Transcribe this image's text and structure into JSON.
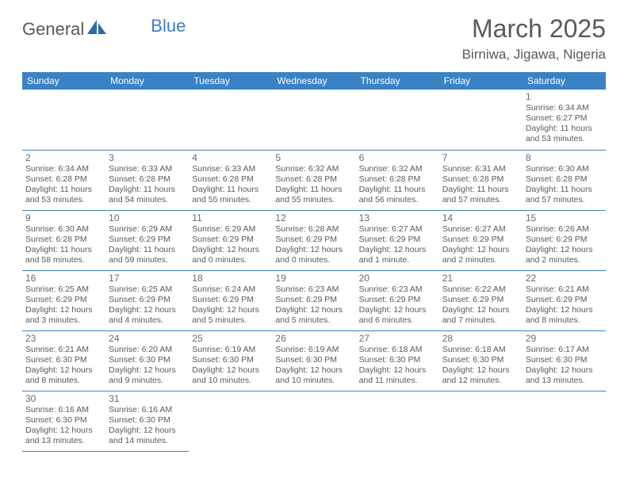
{
  "logo": {
    "part1": "General",
    "part2": "Blue"
  },
  "title": "March 2025",
  "location": "Birniwa, Jigawa, Nigeria",
  "colors": {
    "header_bg": "#3a82c4",
    "header_fg": "#ffffff",
    "rule": "#3a82c4",
    "text": "#5a5a5a"
  },
  "dayNames": [
    "Sunday",
    "Monday",
    "Tuesday",
    "Wednesday",
    "Thursday",
    "Friday",
    "Saturday"
  ],
  "weeks": [
    [
      null,
      null,
      null,
      null,
      null,
      null,
      {
        "n": "1",
        "rise": "6:34 AM",
        "set": "6:27 PM",
        "day": "11 hours and 53 minutes."
      }
    ],
    [
      {
        "n": "2",
        "rise": "6:34 AM",
        "set": "6:28 PM",
        "day": "11 hours and 53 minutes."
      },
      {
        "n": "3",
        "rise": "6:33 AM",
        "set": "6:28 PM",
        "day": "11 hours and 54 minutes."
      },
      {
        "n": "4",
        "rise": "6:33 AM",
        "set": "6:28 PM",
        "day": "11 hours and 55 minutes."
      },
      {
        "n": "5",
        "rise": "6:32 AM",
        "set": "6:28 PM",
        "day": "11 hours and 55 minutes."
      },
      {
        "n": "6",
        "rise": "6:32 AM",
        "set": "6:28 PM",
        "day": "11 hours and 56 minutes."
      },
      {
        "n": "7",
        "rise": "6:31 AM",
        "set": "6:28 PM",
        "day": "11 hours and 57 minutes."
      },
      {
        "n": "8",
        "rise": "6:30 AM",
        "set": "6:28 PM",
        "day": "11 hours and 57 minutes."
      }
    ],
    [
      {
        "n": "9",
        "rise": "6:30 AM",
        "set": "6:28 PM",
        "day": "11 hours and 58 minutes."
      },
      {
        "n": "10",
        "rise": "6:29 AM",
        "set": "6:29 PM",
        "day": "11 hours and 59 minutes."
      },
      {
        "n": "11",
        "rise": "6:29 AM",
        "set": "6:29 PM",
        "day": "12 hours and 0 minutes."
      },
      {
        "n": "12",
        "rise": "6:28 AM",
        "set": "6:29 PM",
        "day": "12 hours and 0 minutes."
      },
      {
        "n": "13",
        "rise": "6:27 AM",
        "set": "6:29 PM",
        "day": "12 hours and 1 minute."
      },
      {
        "n": "14",
        "rise": "6:27 AM",
        "set": "6:29 PM",
        "day": "12 hours and 2 minutes."
      },
      {
        "n": "15",
        "rise": "6:26 AM",
        "set": "6:29 PM",
        "day": "12 hours and 2 minutes."
      }
    ],
    [
      {
        "n": "16",
        "rise": "6:25 AM",
        "set": "6:29 PM",
        "day": "12 hours and 3 minutes."
      },
      {
        "n": "17",
        "rise": "6:25 AM",
        "set": "6:29 PM",
        "day": "12 hours and 4 minutes."
      },
      {
        "n": "18",
        "rise": "6:24 AM",
        "set": "6:29 PM",
        "day": "12 hours and 5 minutes."
      },
      {
        "n": "19",
        "rise": "6:23 AM",
        "set": "6:29 PM",
        "day": "12 hours and 5 minutes."
      },
      {
        "n": "20",
        "rise": "6:23 AM",
        "set": "6:29 PM",
        "day": "12 hours and 6 minutes."
      },
      {
        "n": "21",
        "rise": "6:22 AM",
        "set": "6:29 PM",
        "day": "12 hours and 7 minutes."
      },
      {
        "n": "22",
        "rise": "6:21 AM",
        "set": "6:29 PM",
        "day": "12 hours and 8 minutes."
      }
    ],
    [
      {
        "n": "23",
        "rise": "6:21 AM",
        "set": "6:30 PM",
        "day": "12 hours and 8 minutes."
      },
      {
        "n": "24",
        "rise": "6:20 AM",
        "set": "6:30 PM",
        "day": "12 hours and 9 minutes."
      },
      {
        "n": "25",
        "rise": "6:19 AM",
        "set": "6:30 PM",
        "day": "12 hours and 10 minutes."
      },
      {
        "n": "26",
        "rise": "6:19 AM",
        "set": "6:30 PM",
        "day": "12 hours and 10 minutes."
      },
      {
        "n": "27",
        "rise": "6:18 AM",
        "set": "6:30 PM",
        "day": "12 hours and 11 minutes."
      },
      {
        "n": "28",
        "rise": "6:18 AM",
        "set": "6:30 PM",
        "day": "12 hours and 12 minutes."
      },
      {
        "n": "29",
        "rise": "6:17 AM",
        "set": "6:30 PM",
        "day": "12 hours and 13 minutes."
      }
    ],
    [
      {
        "n": "30",
        "rise": "6:16 AM",
        "set": "6:30 PM",
        "day": "12 hours and 13 minutes."
      },
      {
        "n": "31",
        "rise": "6:16 AM",
        "set": "6:30 PM",
        "day": "12 hours and 14 minutes."
      },
      null,
      null,
      null,
      null,
      null
    ]
  ],
  "labels": {
    "sunrise": "Sunrise:",
    "sunset": "Sunset:",
    "daylight": "Daylight:"
  }
}
